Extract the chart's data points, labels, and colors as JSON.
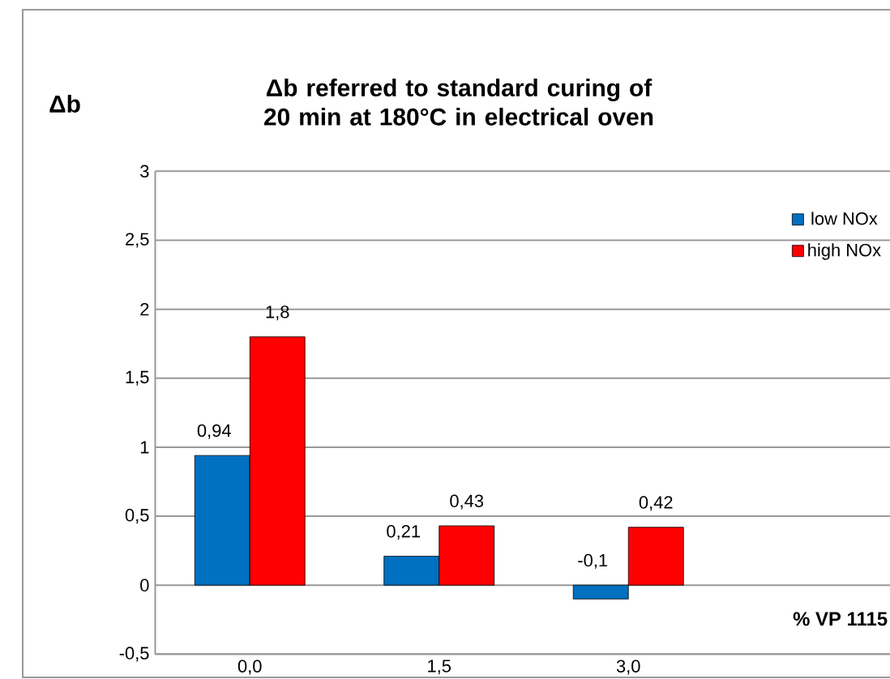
{
  "chart_data": {
    "type": "bar",
    "title": "Δb referred to standard curing of 20 min at 180°C in electrical oven",
    "ylabel": "Δb",
    "xlabel": "% VP 1115",
    "categories": [
      "0,0",
      "1,5",
      "3,0"
    ],
    "series": [
      {
        "name": "low NOx",
        "color": "#0070c0",
        "values": [
          0.94,
          0.21,
          -0.1
        ],
        "value_labels": [
          "0,94",
          "0,21",
          "-0,1"
        ]
      },
      {
        "name": "high NOx",
        "color": "#ff0000",
        "values": [
          1.8,
          0.43,
          0.42
        ],
        "value_labels": [
          "1,8",
          "0,43",
          "0,42"
        ]
      }
    ],
    "ylim": [
      -0.5,
      3
    ],
    "yticks": [
      {
        "value": -0.5,
        "label": "-0,5"
      },
      0,
      {
        "value": 0.5,
        "label": "0,5"
      },
      1,
      {
        "value": 1.5,
        "label": "1,5"
      },
      2,
      {
        "value": 2.5,
        "label": "2,5"
      },
      3
    ],
    "grid": "y",
    "legend": "top right"
  }
}
